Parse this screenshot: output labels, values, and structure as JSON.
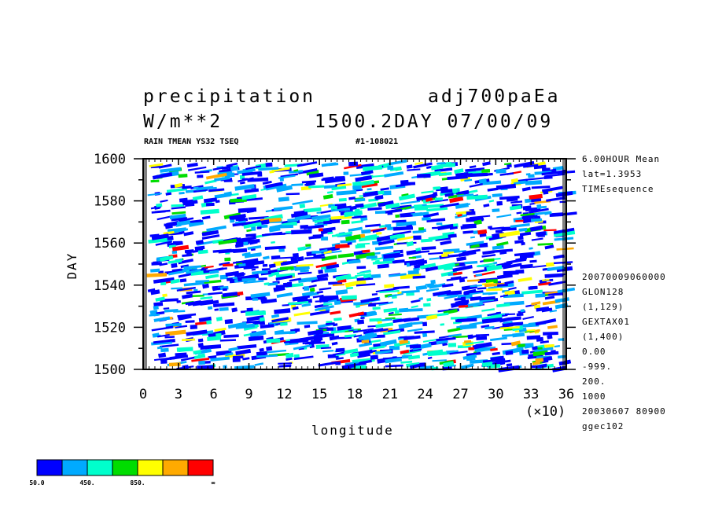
{
  "header": {
    "title_left": "precipitation",
    "title_right": "adj700paEa",
    "unit": "W/m**2",
    "time_label": "1500.2DAY 07/00/09",
    "sub_left": "RAIN TMEAN YS32 TSEQ",
    "sub_right": "#1-108021"
  },
  "side_info": {
    "top": [
      "6.00HOUR Mean",
      "lat=1.3953",
      "TIMEsequence"
    ],
    "bottom": [
      "20070009060000",
      "GLON128",
      "(1,129)",
      "GEXTAX01",
      "(1,400)",
      "0.00",
      "-999.",
      "200.",
      "1000",
      "20030607  80900",
      "ggec102"
    ]
  },
  "chart_data": {
    "type": "heatmap",
    "xlabel": "longitude",
    "ylabel": "DAY",
    "x_scale_label": "(×10)",
    "xlim": [
      0,
      36
    ],
    "ylim": [
      1500,
      1600
    ],
    "x_ticks": [
      "0",
      "3",
      "6",
      "9",
      "12",
      "15",
      "18",
      "21",
      "24",
      "27",
      "30",
      "33",
      "36"
    ],
    "y_ticks": [
      "1500",
      "1520",
      "1540",
      "1560",
      "1580",
      "1600"
    ],
    "colorbar": {
      "colors": [
        "#0000ff",
        "#00aaff",
        "#00ffcc",
        "#00dd00",
        "#ffff00",
        "#ffaa00",
        "#ff0000"
      ],
      "labels": [
        "50.0",
        "450.",
        "850.",
        "∞"
      ]
    }
  }
}
